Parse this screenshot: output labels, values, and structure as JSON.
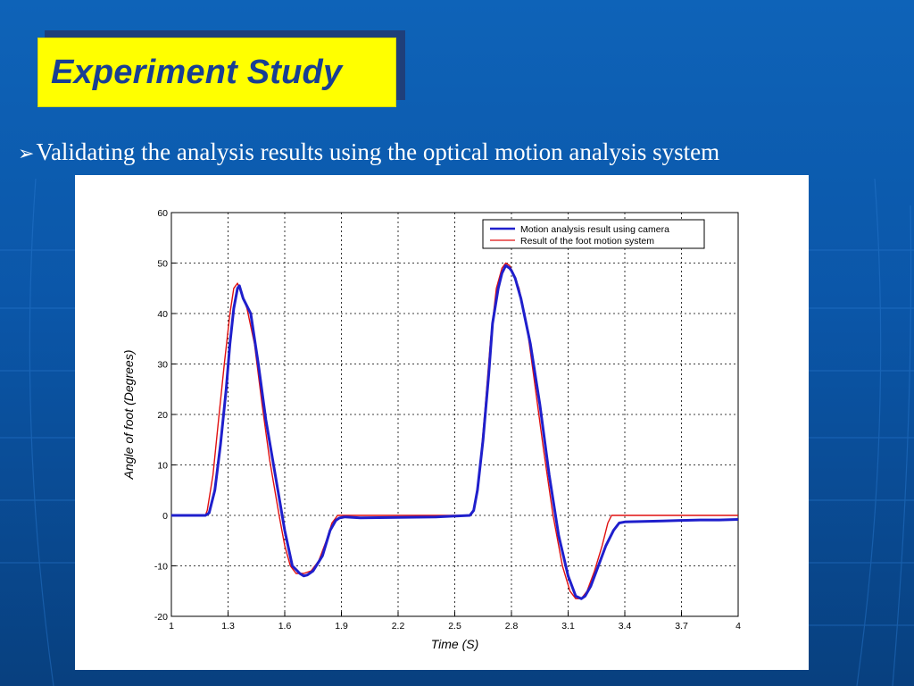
{
  "slide": {
    "title": "Experiment Study",
    "bullet_icon": "arrow-bullet-icon",
    "bullet": "Validating the analysis results using the optical motion analysis system"
  },
  "colors": {
    "background": "#0b56a8",
    "title_box": "#ffff00",
    "title_text": "#183e93",
    "camera": "#1f1fcc",
    "foot_system": "#e01010"
  },
  "chart_data": {
    "type": "line",
    "title": "",
    "xlabel": "Time (S)",
    "ylabel": "Angle of foot (Degrees)",
    "xlim": [
      1,
      4
    ],
    "ylim": [
      -20,
      60
    ],
    "xticks": [
      "1",
      "1.3",
      "1.6",
      "1.9",
      "2.2",
      "2.5",
      "2.8",
      "3.1",
      "3.4",
      "3.7",
      "4"
    ],
    "yticks": [
      "60",
      "50",
      "40",
      "30",
      "20",
      "10",
      "0",
      "-10",
      "-20"
    ],
    "grid": true,
    "legend_position": "top-right",
    "series": [
      {
        "name": "Motion analysis result using camera",
        "color": "#1f1fcc",
        "x": [
          1.0,
          1.1,
          1.18,
          1.2,
          1.23,
          1.26,
          1.29,
          1.31,
          1.33,
          1.35,
          1.36,
          1.38,
          1.42,
          1.46,
          1.5,
          1.55,
          1.6,
          1.64,
          1.68,
          1.7,
          1.72,
          1.75,
          1.8,
          1.84,
          1.87,
          1.89,
          1.92,
          2.0,
          2.2,
          2.4,
          2.58,
          2.6,
          2.62,
          2.65,
          2.68,
          2.7,
          2.73,
          2.75,
          2.77,
          2.79,
          2.8,
          2.82,
          2.85,
          2.9,
          2.95,
          3.0,
          3.05,
          3.1,
          3.14,
          3.17,
          3.19,
          3.22,
          3.26,
          3.3,
          3.34,
          3.37,
          3.4,
          3.5,
          3.6,
          3.7,
          3.8,
          3.9,
          4.0
        ],
        "y": [
          0,
          0,
          0,
          0.5,
          5,
          14,
          25,
          34,
          41,
          45,
          45.5,
          43,
          40,
          30,
          19,
          8,
          -3,
          -10,
          -11.5,
          -12,
          -11.8,
          -11,
          -8,
          -3,
          -1,
          -0.5,
          -0.3,
          -0.5,
          -0.4,
          -0.3,
          0,
          1,
          5,
          15,
          28,
          38,
          45,
          48,
          49.5,
          49,
          48.5,
          47,
          43,
          34,
          22,
          8,
          -4,
          -12,
          -16,
          -16.5,
          -16,
          -14,
          -10,
          -6,
          -3,
          -1.5,
          -1.3,
          -1.2,
          -1.1,
          -1.0,
          -0.9,
          -0.9,
          -0.8
        ]
      },
      {
        "name": "Result of the foot motion system",
        "color": "#e01010",
        "x": [
          1.0,
          1.1,
          1.18,
          1.19,
          1.22,
          1.25,
          1.28,
          1.31,
          1.33,
          1.35,
          1.37,
          1.4,
          1.44,
          1.48,
          1.52,
          1.57,
          1.6,
          1.63,
          1.66,
          1.7,
          1.74,
          1.78,
          1.82,
          1.85,
          1.88,
          1.9,
          2.0,
          2.2,
          2.4,
          2.58,
          2.6,
          2.63,
          2.66,
          2.69,
          2.72,
          2.75,
          2.77,
          2.79,
          2.81,
          2.84,
          2.88,
          2.92,
          2.97,
          3.02,
          3.07,
          3.11,
          3.14,
          3.17,
          3.2,
          3.24,
          3.28,
          3.31,
          3.33,
          3.35,
          3.4,
          3.5,
          3.7,
          4.0
        ],
        "y": [
          0,
          0,
          0,
          1,
          8,
          19,
          30,
          40,
          45,
          46,
          44,
          41,
          34,
          22,
          11,
          0,
          -6,
          -10,
          -11.5,
          -11.5,
          -11,
          -9,
          -5,
          -1.5,
          0,
          0,
          0,
          0,
          0,
          0,
          1,
          8,
          21,
          35,
          45,
          49,
          50,
          49.5,
          48,
          45,
          38,
          27,
          13,
          0,
          -10,
          -15,
          -16.5,
          -16.5,
          -15,
          -11,
          -6,
          -1.5,
          0,
          0,
          0,
          0,
          0,
          0
        ]
      }
    ]
  }
}
